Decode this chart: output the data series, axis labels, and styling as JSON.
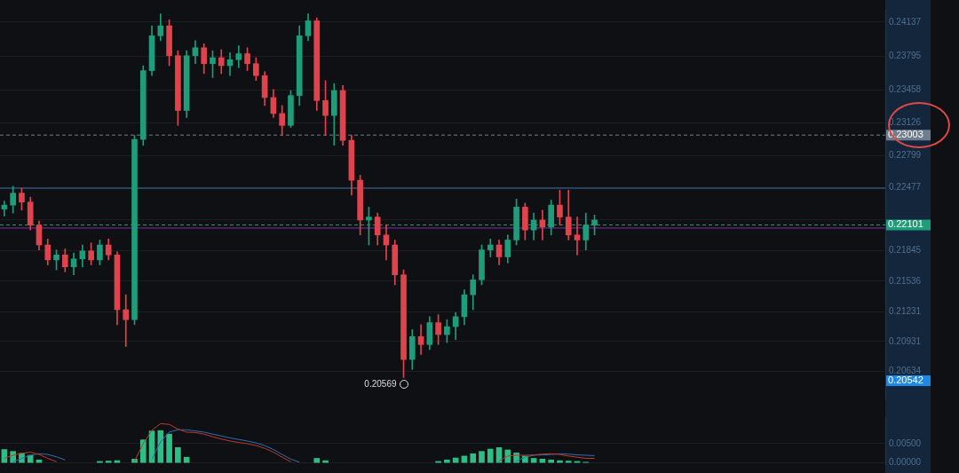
{
  "chart_data": [
    {
      "type": "candlestick",
      "categories": [
        null,
        null,
        null,
        null,
        null,
        null,
        null,
        null,
        null,
        null,
        null,
        null,
        null,
        null,
        null,
        null,
        null,
        null,
        null,
        null,
        null,
        null,
        null,
        null,
        null,
        null,
        null,
        null,
        null,
        null,
        null,
        null,
        null,
        null,
        null,
        null,
        null,
        null,
        null,
        null,
        null,
        null,
        null,
        null,
        null,
        null,
        null,
        null,
        null,
        null,
        null,
        null,
        null,
        null,
        null,
        null,
        null,
        null,
        null,
        null,
        null,
        null,
        null,
        null,
        null,
        null,
        null,
        null,
        null,
        null,
        null,
        null,
        null,
        null,
        null,
        null,
        null,
        null,
        null,
        null,
        null,
        null,
        null,
        null,
        null,
        null,
        null,
        null,
        null,
        null,
        null,
        null,
        null,
        null,
        null,
        null,
        null,
        null,
        null,
        null,
        null,
        null
      ],
      "ohlc": [
        [
          0.2226,
          0.2234,
          0.2219,
          0.223
        ],
        [
          0.223,
          0.2249,
          0.2222,
          0.2242
        ],
        [
          0.2242,
          0.2247,
          0.2225,
          0.2233
        ],
        [
          0.2233,
          0.2238,
          0.2205,
          0.221
        ],
        [
          0.221,
          0.2214,
          0.2185,
          0.219
        ],
        [
          0.219,
          0.2196,
          0.217,
          0.2175
        ],
        [
          0.2175,
          0.2185,
          0.2165,
          0.218
        ],
        [
          0.218,
          0.2186,
          0.2163,
          0.2168
        ],
        [
          0.2168,
          0.2182,
          0.216,
          0.2176
        ],
        [
          0.2176,
          0.219,
          0.2168,
          0.2184
        ],
        [
          0.2184,
          0.2192,
          0.217,
          0.2175
        ],
        [
          0.2175,
          0.2195,
          0.217,
          0.219
        ],
        [
          0.219,
          0.2196,
          0.2175,
          0.218
        ],
        [
          0.218,
          0.2183,
          0.211,
          0.2125
        ],
        [
          0.2125,
          0.214,
          0.2088,
          0.2115
        ],
        [
          0.2115,
          0.23,
          0.211,
          0.2296
        ],
        [
          0.2296,
          0.237,
          0.229,
          0.2365
        ],
        [
          0.2365,
          0.241,
          0.236,
          0.24
        ],
        [
          0.24,
          0.2422,
          0.2395,
          0.241
        ],
        [
          0.241,
          0.2416,
          0.237,
          0.238
        ],
        [
          0.238,
          0.2385,
          0.231,
          0.2325
        ],
        [
          0.2325,
          0.2385,
          0.2318,
          0.238
        ],
        [
          0.238,
          0.2395,
          0.2372,
          0.2388
        ],
        [
          0.2388,
          0.2392,
          0.2362,
          0.2372
        ],
        [
          0.2372,
          0.2385,
          0.2358,
          0.2378
        ],
        [
          0.2378,
          0.2386,
          0.2362,
          0.237
        ],
        [
          0.237,
          0.2383,
          0.236,
          0.2376
        ],
        [
          0.2376,
          0.239,
          0.2368,
          0.2382
        ],
        [
          0.2382,
          0.2388,
          0.2365,
          0.2372
        ],
        [
          0.2372,
          0.2378,
          0.2355,
          0.236
        ],
        [
          0.236,
          0.2364,
          0.233,
          0.2338
        ],
        [
          0.2338,
          0.2346,
          0.2318,
          0.2322
        ],
        [
          0.2322,
          0.233,
          0.23,
          0.231
        ],
        [
          0.231,
          0.2345,
          0.2308,
          0.234
        ],
        [
          0.234,
          0.241,
          0.233,
          0.24
        ],
        [
          0.24,
          0.2422,
          0.2395,
          0.2415
        ],
        [
          0.2415,
          0.2418,
          0.2325,
          0.2335
        ],
        [
          0.2335,
          0.2355,
          0.23,
          0.232
        ],
        [
          0.232,
          0.2352,
          0.229,
          0.2345
        ],
        [
          0.2345,
          0.235,
          0.229,
          0.2295
        ],
        [
          0.2295,
          0.23,
          0.224,
          0.2255
        ],
        [
          0.2255,
          0.226,
          0.22,
          0.2215
        ],
        [
          0.2215,
          0.2228,
          0.219,
          0.2218
        ],
        [
          0.2218,
          0.2222,
          0.219,
          0.22
        ],
        [
          0.22,
          0.221,
          0.2175,
          0.219
        ],
        [
          0.219,
          0.2195,
          0.215,
          0.216
        ],
        [
          0.216,
          0.2165,
          0.20569,
          0.2075
        ],
        [
          0.2075,
          0.2105,
          0.2065,
          0.2098
        ],
        [
          0.2098,
          0.211,
          0.208,
          0.209
        ],
        [
          0.209,
          0.2118,
          0.2085,
          0.2112
        ],
        [
          0.2112,
          0.212,
          0.209,
          0.21
        ],
        [
          0.21,
          0.2115,
          0.2092,
          0.2108
        ],
        [
          0.2108,
          0.2122,
          0.2095,
          0.2118
        ],
        [
          0.2118,
          0.2145,
          0.211,
          0.214
        ],
        [
          0.214,
          0.216,
          0.2125,
          0.2155
        ],
        [
          0.2155,
          0.219,
          0.215,
          0.2185
        ],
        [
          0.2185,
          0.2196,
          0.2178,
          0.219
        ],
        [
          0.219,
          0.2195,
          0.217,
          0.2178
        ],
        [
          0.2178,
          0.22,
          0.2172,
          0.2195
        ],
        [
          0.2195,
          0.2236,
          0.219,
          0.2228
        ],
        [
          0.2228,
          0.2232,
          0.2195,
          0.2205
        ],
        [
          0.2205,
          0.2222,
          0.2195,
          0.2215
        ],
        [
          0.2215,
          0.2225,
          0.2195,
          0.2208
        ],
        [
          0.2208,
          0.2235,
          0.22,
          0.223
        ],
        [
          0.223,
          0.2245,
          0.221,
          0.2218
        ],
        [
          0.2218,
          0.2245,
          0.2195,
          0.22
        ],
        [
          0.22,
          0.2218,
          0.218,
          0.2195
        ],
        [
          0.2195,
          0.2222,
          0.2185,
          0.221
        ],
        [
          0.221,
          0.222,
          0.22,
          0.2215
        ],
        null,
        null,
        null,
        null,
        null,
        null,
        null,
        null,
        null,
        null,
        null,
        null,
        null,
        null,
        null,
        null,
        null,
        null,
        null,
        null,
        null,
        null,
        null,
        null,
        null,
        null,
        null,
        null,
        null,
        null,
        null,
        null,
        null
      ],
      "ylim": [
        0.2035,
        0.2427
      ],
      "yticks": [
        0.24137,
        0.23795,
        0.23458,
        0.23126,
        0.22799,
        0.22477,
        {
          "value": 0.22158,
          "label": null
        },
        0.21845,
        0.21536,
        0.21231,
        0.20931,
        0.20634
      ],
      "grid": "y",
      "tick_labels": "y",
      "ref_lines": [
        {
          "axis": "y",
          "value": 0.23003,
          "label": "0.23003",
          "line_style": "dashed",
          "color": "#6f7d8c"
        },
        {
          "axis": "y",
          "value": 0.2247,
          "color": "#3d6fa8"
        },
        {
          "axis": "y",
          "value": 0.22101,
          "label": "0.22101",
          "line_style": "dashed",
          "color": "#1f9c7a"
        },
        {
          "axis": "y",
          "value": 0.2207,
          "color": "#7b2fa8"
        }
      ],
      "annotations": [
        "0.20569",
        "0.20542"
      ]
    },
    {
      "type": "bar",
      "categories": [
        null,
        null,
        null,
        null,
        null,
        null,
        null,
        null,
        null,
        null,
        null,
        null,
        null,
        null,
        null,
        null,
        null,
        null,
        null,
        null,
        null,
        null,
        null,
        null,
        null,
        null,
        null,
        null,
        null,
        null,
        null,
        null,
        null,
        null,
        null,
        null,
        null,
        null,
        null,
        null,
        null,
        null,
        null,
        null,
        null,
        null,
        null,
        null,
        null,
        null,
        null,
        null,
        null,
        null,
        null,
        null,
        null,
        null,
        null,
        null,
        null,
        null,
        null,
        null,
        null,
        null,
        null,
        null,
        null,
        null,
        null,
        null,
        null,
        null,
        null,
        null,
        null,
        null,
        null,
        null,
        null,
        null,
        null,
        null,
        null,
        null,
        null,
        null,
        null,
        null,
        null,
        null,
        null,
        null,
        null,
        null,
        null,
        null,
        null,
        null,
        null,
        null
      ],
      "series": [
        {
          "type": "bar",
          "color": "#2ebd85",
          "values": [
            0.0035,
            0.003,
            0.0025,
            0.002,
            0.0008,
            null,
            null,
            null,
            null,
            null,
            null,
            0.0004,
            0.0005,
            0.0006,
            null,
            0.001,
            0.006,
            0.0083,
            0.0084,
            0.0075,
            0.004,
            0.0015,
            null,
            null,
            null,
            null,
            null,
            null,
            null,
            null,
            null,
            null,
            null,
            null,
            null,
            null,
            0.0012,
            0.0006,
            null,
            null,
            null,
            null,
            null,
            null,
            null,
            null,
            null,
            null,
            null,
            null,
            0.0004,
            0.0008,
            0.0013,
            0.0018,
            0.0024,
            0.003,
            0.0036,
            0.004,
            0.0034,
            0.0026,
            0.0018,
            0.0012,
            0.001,
            0.0008,
            0.0006,
            0.0005,
            0.0004,
            0.0002,
            null,
            null,
            null,
            null,
            null,
            null,
            null,
            null,
            null,
            null,
            null,
            null,
            null,
            null,
            null,
            null,
            null,
            null,
            null,
            null,
            null,
            null,
            null,
            null,
            null,
            null,
            null,
            null,
            null,
            null,
            null,
            null,
            null,
            null
          ]
        },
        {
          "type": "line",
          "color": "#c0392b",
          "values": [
            0.0012,
            0.002,
            0.0025,
            0.0028,
            0.0022,
            0.0012,
            0.0003,
            null,
            null,
            null,
            null,
            null,
            null,
            null,
            null,
            0.0005,
            0.005,
            0.0085,
            0.0102,
            0.01,
            0.0088,
            0.008,
            0.0079,
            0.0075,
            0.0068,
            0.0062,
            0.0057,
            0.0053,
            0.005,
            0.0045,
            0.0038,
            0.0028,
            0.0015,
            0.0003,
            null,
            null,
            null,
            null,
            null,
            null,
            null,
            null,
            null,
            null,
            null,
            null,
            null,
            null,
            null,
            null,
            null,
            null,
            null,
            null,
            null,
            null,
            null,
            0.0005,
            0.0018,
            0.002,
            0.002,
            0.0021,
            0.0023,
            0.0024,
            0.0022,
            0.0018,
            0.0015,
            0.0012,
            0.0012,
            null,
            null,
            null,
            null,
            null,
            null,
            null,
            null,
            null,
            null,
            null,
            null,
            null,
            null,
            null,
            null,
            null,
            null,
            null,
            null,
            null,
            null,
            null,
            null,
            null,
            null,
            null,
            null,
            null,
            null,
            null,
            null,
            null
          ]
        },
        {
          "type": "line",
          "color": "#2f6db5",
          "values": [
            null,
            0.0003,
            0.0012,
            0.002,
            0.0024,
            0.0022,
            0.0016,
            0.0008,
            null,
            null,
            null,
            null,
            null,
            null,
            null,
            null,
            null,
            0.001,
            0.0055,
            0.008,
            0.0086,
            0.0086,
            0.0083,
            0.008,
            0.0075,
            0.007,
            0.0065,
            0.0061,
            0.0057,
            0.0052,
            0.0045,
            0.0035,
            0.0022,
            0.001,
            0.0002,
            null,
            null,
            null,
            null,
            null,
            null,
            null,
            null,
            null,
            null,
            null,
            null,
            null,
            null,
            null,
            null,
            null,
            null,
            null,
            null,
            null,
            null,
            null,
            null,
            0.0005,
            0.0015,
            0.002,
            0.0021,
            0.0022,
            0.0024,
            0.0023,
            0.0021,
            0.002,
            0.0019,
            null,
            null,
            null,
            null,
            null,
            null,
            null,
            null,
            null,
            null,
            null,
            null,
            null,
            null,
            null,
            null,
            null,
            null,
            null,
            null,
            null,
            null,
            null,
            null,
            null,
            null,
            null,
            null,
            null,
            null,
            null,
            null,
            null
          ]
        }
      ],
      "ylim": [
        -0.0003,
        0.0119
      ],
      "yticks": [
        {
          "value": 0.005,
          "label": "0.00500"
        },
        {
          "value": 0,
          "label": "0.00000"
        }
      ],
      "grid": "y",
      "tick_labels": "y"
    }
  ]
}
